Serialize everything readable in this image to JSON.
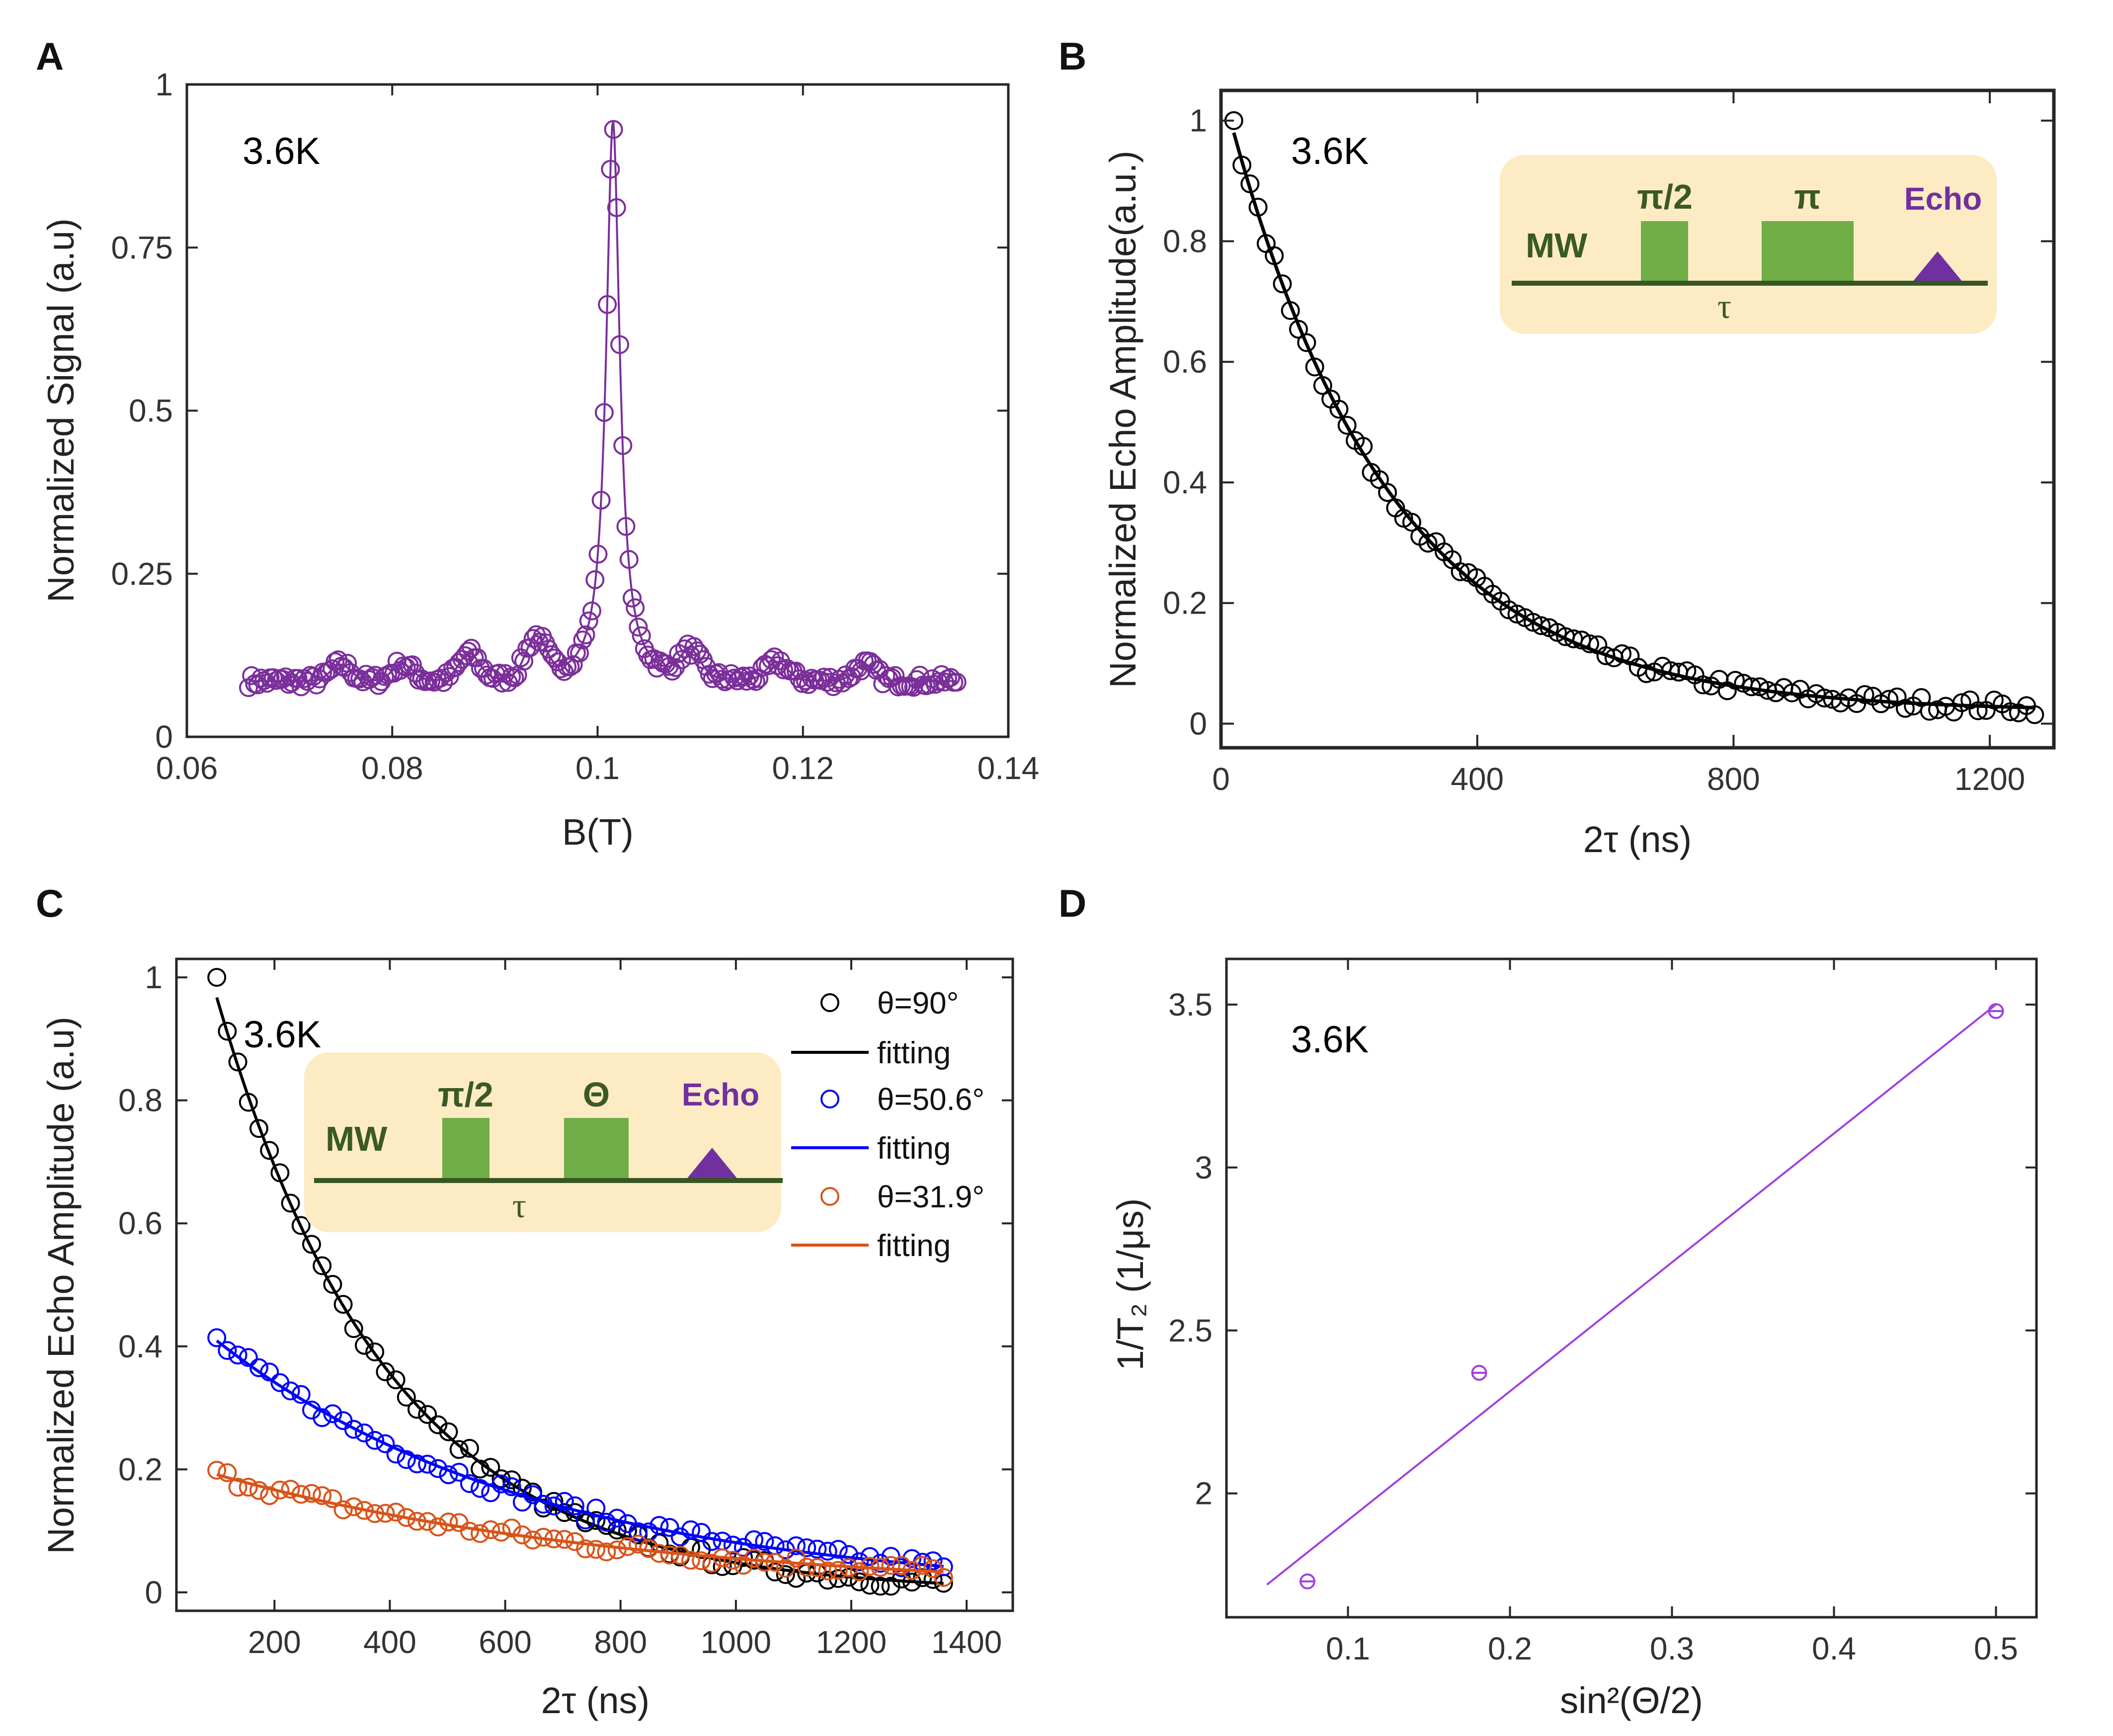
{
  "panels": {
    "A": {
      "letter": "A",
      "temperature": "3.6K",
      "chart_data": {
        "type": "scatter",
        "title": "",
        "xlabel": "B(T)",
        "ylabel": "Normalized Signal (a.u)",
        "xlim": [
          0.06,
          0.14
        ],
        "ylim": [
          0,
          1
        ],
        "xticks": [
          "0.06",
          "0.08",
          "0.1",
          "0.12",
          "0.14"
        ],
        "yticks": [
          "0",
          "0.25",
          "0.5",
          "0.75",
          "1"
        ],
        "xtick_values": [
          0.06,
          0.08,
          0.1,
          0.12,
          0.14
        ],
        "ytick_values": [
          0,
          0.25,
          0.5,
          0.75,
          1
        ],
        "series": [
          {
            "name": "data",
            "color": "#7b2f9b",
            "marker": "circle",
            "x_range": [
              0.066,
              0.135
            ],
            "n_points": 230,
            "model": {
              "baseline": 0.085,
              "peak_center": 0.1015,
              "peak_height": 0.86,
              "peak_halfwidth": 0.0008,
              "bumps": [
                {
                  "x": 0.075,
                  "h": 0.025
                },
                {
                  "x": 0.081,
                  "h": 0.025
                },
                {
                  "x": 0.0875,
                  "h": 0.04
                },
                {
                  "x": 0.094,
                  "h": 0.06
                },
                {
                  "x": 0.109,
                  "h": 0.04
                },
                {
                  "x": 0.1175,
                  "h": 0.028
                },
                {
                  "x": 0.126,
                  "h": 0.025
                }
              ]
            }
          }
        ]
      }
    },
    "B": {
      "letter": "B",
      "temperature": "3.6K",
      "inset": {
        "channel": "MW",
        "pulse1": "π/2",
        "pulse2": "π",
        "echo": "Echo",
        "tau": "τ"
      },
      "chart_data": {
        "type": "scatter",
        "title": "",
        "xlabel": "2τ (ns)",
        "ylabel": "Normalized Echo Amplitude(a.u.)",
        "xlim": [
          0,
          1300
        ],
        "ylim": [
          -0.04,
          1.05
        ],
        "xticks": [
          "0",
          "400",
          "800",
          "1200"
        ],
        "yticks": [
          "0",
          "0.2",
          "0.4",
          "0.6",
          "0.8",
          "1"
        ],
        "xtick_values": [
          0,
          400,
          800,
          1200
        ],
        "ytick_values": [
          0,
          0.2,
          0.4,
          0.6,
          0.8,
          1
        ],
        "series": [
          {
            "name": "data",
            "color": "#000000",
            "marker": "circle",
            "x_range": [
              20,
              1270
            ],
            "n_points": 100,
            "model": {
              "a": 1.015,
              "tau": 250,
              "offset": 0.0
            },
            "first_point": [
              20,
              1.0
            ]
          },
          {
            "name": "fit",
            "color": "#000000",
            "line": true,
            "x_range": [
              20,
              1270
            ],
            "model": {
              "a": 1.0,
              "tau": 250,
              "offset": 0.0
            }
          }
        ]
      }
    },
    "C": {
      "letter": "C",
      "temperature": "3.6K",
      "inset": {
        "channel": "MW",
        "pulse1": "π/2",
        "pulse2": "Θ",
        "echo": "Echo",
        "tau": "τ"
      },
      "legend": [
        {
          "label": "θ=90°",
          "type": "marker",
          "color": "#000000"
        },
        {
          "label": "fitting",
          "type": "line",
          "color": "#000000"
        },
        {
          "label": "θ=50.6°",
          "type": "marker",
          "color": "#0000ff"
        },
        {
          "label": "fitting",
          "type": "line",
          "color": "#0000ff"
        },
        {
          "label": "θ=31.9°",
          "type": "marker",
          "color": "#d95319"
        },
        {
          "label": "fitting",
          "type": "line",
          "color": "#d95319"
        }
      ],
      "chart_data": {
        "type": "scatter",
        "title": "",
        "xlabel": "2τ (ns)",
        "ylabel": "Normalized Echo Amplitude (a.u)",
        "xlim": [
          30,
          1480
        ],
        "ylim": [
          -0.03,
          1.03
        ],
        "xticks": [
          "200",
          "400",
          "600",
          "800",
          "1000",
          "1200",
          "1400"
        ],
        "yticks": [
          "0",
          "0.2",
          "0.4",
          "0.6",
          "0.8",
          "1"
        ],
        "xtick_values": [
          200,
          400,
          600,
          800,
          1000,
          1200,
          1400
        ],
        "ytick_values": [
          0,
          0.2,
          0.4,
          0.6,
          0.8,
          1
        ],
        "series": [
          {
            "name": "θ=90°",
            "color": "#000000",
            "x_range": [
              100,
              1360
            ],
            "n_points": 70,
            "model": {
              "a": 1.35,
              "tau": 300,
              "offset": 0.0
            }
          },
          {
            "name": "θ=50.6°",
            "color": "#0000ff",
            "x_range": [
              100,
              1360
            ],
            "n_points": 70,
            "model": {
              "a": 0.49,
              "tau": 555,
              "offset": 0.0
            }
          },
          {
            "name": "θ=31.9°",
            "color": "#d95319",
            "x_range": [
              100,
              1360
            ],
            "n_points": 70,
            "model": {
              "a": 0.22,
              "tau": 720,
              "offset": 0.0
            }
          }
        ]
      }
    },
    "D": {
      "letter": "D",
      "temperature": "3.6K",
      "chart_data": {
        "type": "scatter",
        "title": "",
        "xlabel": "sin²(Θ/2)",
        "ylabel": "1/T₂ (1/μs)",
        "xlim": [
          0.025,
          0.525
        ],
        "ylim": [
          1.62,
          3.64
        ],
        "xticks": [
          "0.1",
          "0.2",
          "0.3",
          "0.4",
          "0.5"
        ],
        "yticks": [
          "2",
          "2.5",
          "3",
          "3.5"
        ],
        "xtick_values": [
          0.1,
          0.2,
          0.3,
          0.4,
          0.5
        ],
        "ytick_values": [
          2,
          2.5,
          3,
          3.5
        ],
        "series": [
          {
            "name": "data",
            "color": "#a040e0",
            "x": [
              0.075,
              0.181,
              0.5
            ],
            "y": [
              1.73,
              2.37,
              3.48
            ]
          },
          {
            "name": "fit",
            "color": "#a040e0",
            "line": true,
            "x": [
              0.05,
              0.5
            ],
            "y": [
              1.72,
              3.5
            ]
          }
        ]
      }
    }
  }
}
